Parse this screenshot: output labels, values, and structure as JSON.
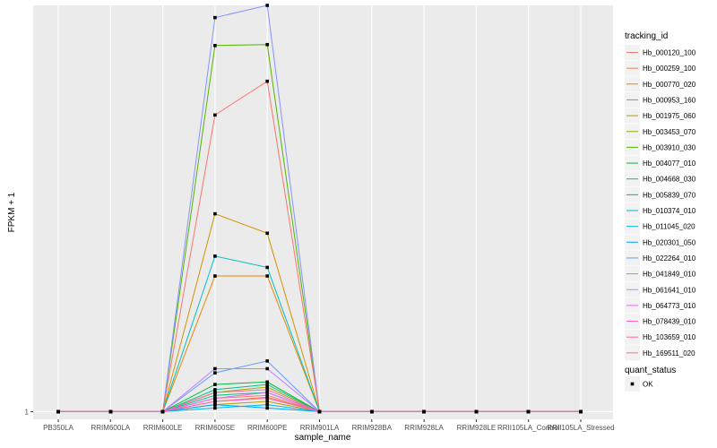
{
  "chart_data": {
    "type": "line",
    "xlabel": "sample_name",
    "ylabel": "FPKM + 1",
    "y_ticks": [
      {
        "value": 1,
        "label": "1"
      }
    ],
    "y_scale": "log10",
    "ylim": [
      0.9,
      260
    ],
    "grid": true,
    "legend_position": "right",
    "categories": [
      "PB350LA",
      "RRIM600LA",
      "RRIM600LE",
      "RRIM600SE",
      "RRIM600PE",
      "RRIM901LA",
      "RRIM928BA",
      "RRIM928LA",
      "RRIM928LE",
      "RRII105LA_Control",
      "RRII105LA_Stressed"
    ],
    "legend": {
      "color_title": "tracking_id",
      "shape_title": "quant_status",
      "shape_items": [
        "OK"
      ]
    },
    "series": [
      {
        "name": "Hb_000120_100",
        "color": "#F8766D",
        "values": [
          1,
          1,
          1,
          1.2,
          1.25,
          1,
          1,
          1,
          1,
          1,
          1
        ]
      },
      {
        "name": "Hb_000259_100",
        "color": "#F07E4E",
        "values": [
          1,
          1,
          1,
          1.15,
          1.22,
          1,
          1,
          1,
          1,
          1,
          1
        ]
      },
      {
        "name": "Hb_000770_020",
        "color": "#E48900",
        "values": [
          1,
          1,
          1,
          6.4,
          6.4,
          1,
          1,
          1,
          1,
          1,
          1
        ]
      },
      {
        "name": "Hb_000953_160",
        "color": "#D39200",
        "values": [
          1,
          1,
          1,
          15,
          11.5,
          1,
          1,
          1,
          1,
          1,
          1
        ]
      },
      {
        "name": "Hb_001975_060",
        "color": "#B79F00",
        "values": [
          1,
          1,
          1,
          1.1,
          1.15,
          1,
          1,
          1,
          1,
          1,
          1
        ]
      },
      {
        "name": "Hb_003453_070",
        "color": "#9BAA00",
        "values": [
          1,
          1,
          1,
          1.3,
          1.4,
          1,
          1,
          1,
          1,
          1,
          1
        ]
      },
      {
        "name": "Hb_003910_030",
        "color": "#53B400",
        "values": [
          1,
          1,
          1,
          150,
          152,
          1,
          1,
          1,
          1,
          1,
          1
        ]
      },
      {
        "name": "Hb_004077_010",
        "color": "#00BA38",
        "values": [
          1,
          1,
          1,
          1.45,
          1.5,
          1,
          1,
          1,
          1,
          1,
          1
        ]
      },
      {
        "name": "Hb_004668_030",
        "color": "#00C08B",
        "values": [
          1,
          1,
          1,
          1.35,
          1.45,
          1,
          1,
          1,
          1,
          1,
          1
        ]
      },
      {
        "name": "Hb_005839_070",
        "color": "#00BF7D",
        "values": [
          1,
          1,
          1,
          1.25,
          1.3,
          1,
          1,
          1,
          1,
          1,
          1
        ]
      },
      {
        "name": "Hb_010374_010",
        "color": "#00BFC4",
        "values": [
          1,
          1,
          1,
          8.4,
          7.2,
          1,
          1,
          1,
          1,
          1,
          1
        ]
      },
      {
        "name": "Hb_011045_020",
        "color": "#00B8E7",
        "values": [
          1,
          1,
          1,
          1.05,
          1.1,
          1,
          1,
          1,
          1,
          1,
          1
        ]
      },
      {
        "name": "Hb_020301_050",
        "color": "#00A9FF",
        "values": [
          1,
          1,
          1,
          1.1,
          1.05,
          1,
          1,
          1,
          1,
          1,
          1
        ]
      },
      {
        "name": "Hb_022264_010",
        "color": "#619CFF",
        "values": [
          1,
          1,
          1,
          1.7,
          2.0,
          1,
          1,
          1,
          1,
          1,
          1
        ]
      },
      {
        "name": "Hb_041849_010",
        "color": "#8494FF",
        "values": [
          1,
          1,
          1,
          220,
          260,
          1,
          1,
          1,
          1,
          1,
          1
        ]
      },
      {
        "name": "Hb_061641_010",
        "color": "#C77CFF",
        "values": [
          1,
          1,
          1,
          1.8,
          1.8,
          1,
          1,
          1,
          1,
          1,
          1
        ]
      },
      {
        "name": "Hb_064773_010",
        "color": "#E76BF3",
        "values": [
          1,
          1,
          1,
          1.2,
          1.3,
          1,
          1,
          1,
          1,
          1,
          1
        ]
      },
      {
        "name": "Hb_078439_010",
        "color": "#FF61C3",
        "values": [
          1,
          1,
          1,
          1.15,
          1.2,
          1,
          1,
          1,
          1,
          1,
          1
        ]
      },
      {
        "name": "Hb_103659_010",
        "color": "#FF67A4",
        "values": [
          1,
          1,
          1,
          1.3,
          1.35,
          1,
          1,
          1,
          1,
          1,
          1
        ]
      },
      {
        "name": "Hb_169511_020",
        "color": "#F8766D",
        "values": [
          1,
          1,
          1,
          58,
          92,
          1,
          1,
          1,
          1,
          1,
          1
        ]
      }
    ]
  }
}
